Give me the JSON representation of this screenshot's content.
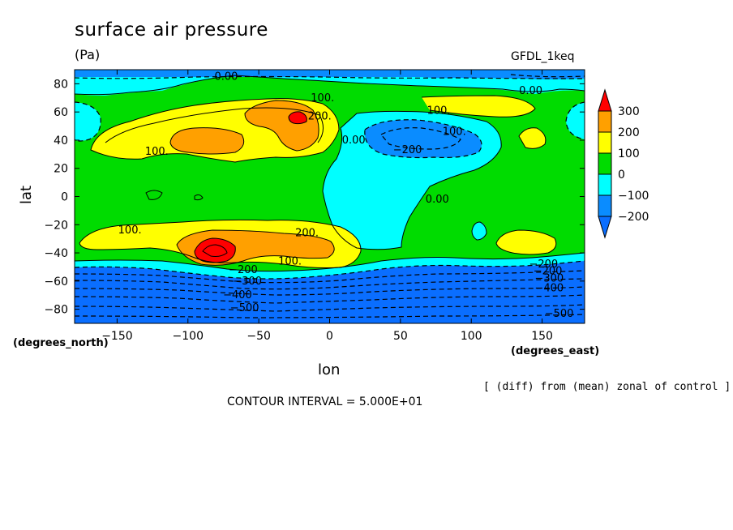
{
  "chart_data": {
    "type": "heatmap",
    "title": "surface air pressure",
    "units": "(Pa)",
    "model": "GFDL_1keq",
    "xlabel": "lon",
    "ylabel": "lat",
    "xunits_label": "(degrees_east)",
    "yunits_label": "(degrees_north)",
    "subtitle_note": "[ (diff) from (mean) zonal of control ]",
    "contour_interval": "CONTOUR INTERVAL = 5.000E+01",
    "xlim": [
      -180,
      180
    ],
    "ylim": [
      -90,
      90
    ],
    "x_ticks": [
      -150,
      -100,
      -50,
      0,
      50,
      100,
      150
    ],
    "x_tick_labels": [
      "−150",
      "−100",
      "−50",
      "0",
      "50",
      "100",
      "150"
    ],
    "y_ticks": [
      80,
      60,
      40,
      20,
      0,
      -20,
      -40,
      -60,
      -80
    ],
    "y_tick_labels": [
      "80",
      "60",
      "40",
      "20",
      "0",
      "−20",
      "−40",
      "−60",
      "−80"
    ],
    "colorbar": {
      "levels": [
        300,
        200,
        100,
        0,
        -100,
        -200
      ],
      "labels": [
        "300",
        "200",
        "100",
        "0",
        "−100",
        "−200"
      ],
      "colors": [
        "#ff0000",
        "#ffa000",
        "#ffff00",
        "#00dc00",
        "#00ffff",
        "#0a8cff",
        "#0a6eff"
      ]
    },
    "contour_labels": [
      {
        "text": "0.00",
        "lon": -73,
        "lat": 85
      },
      {
        "text": "0.00",
        "lon": 142,
        "lat": 75
      },
      {
        "text": "100.",
        "lon": -5,
        "lat": 70
      },
      {
        "text": "200.",
        "lon": -7,
        "lat": 57
      },
      {
        "text": "100.",
        "lon": 77,
        "lat": 61
      },
      {
        "text": "100.",
        "lon": 88,
        "lat": 46
      },
      {
        "text": "0.00",
        "lon": 17,
        "lat": 40
      },
      {
        "text": "−200",
        "lon": 55,
        "lat": 33
      },
      {
        "text": "100.",
        "lon": -122,
        "lat": 32
      },
      {
        "text": "0.00",
        "lon": 76,
        "lat": -2
      },
      {
        "text": "100.",
        "lon": -141,
        "lat": -24
      },
      {
        "text": "200.",
        "lon": -16,
        "lat": -26
      },
      {
        "text": "100.",
        "lon": -28,
        "lat": -46
      },
      {
        "text": "−200",
        "lon": 151,
        "lat": -48
      },
      {
        "text": "−200",
        "lon": -61,
        "lat": -52
      },
      {
        "text": "−200",
        "lon": 154,
        "lat": -53
      },
      {
        "text": "−300",
        "lon": -58,
        "lat": -60
      },
      {
        "text": "−300",
        "lon": 155,
        "lat": -58
      },
      {
        "text": "−400",
        "lon": -65,
        "lat": -70
      },
      {
        "text": "−400",
        "lon": 155,
        "lat": -65
      },
      {
        "text": "−500",
        "lon": -60,
        "lat": -79
      },
      {
        "text": "−500",
        "lon": 162,
        "lat": -83
      }
    ]
  }
}
